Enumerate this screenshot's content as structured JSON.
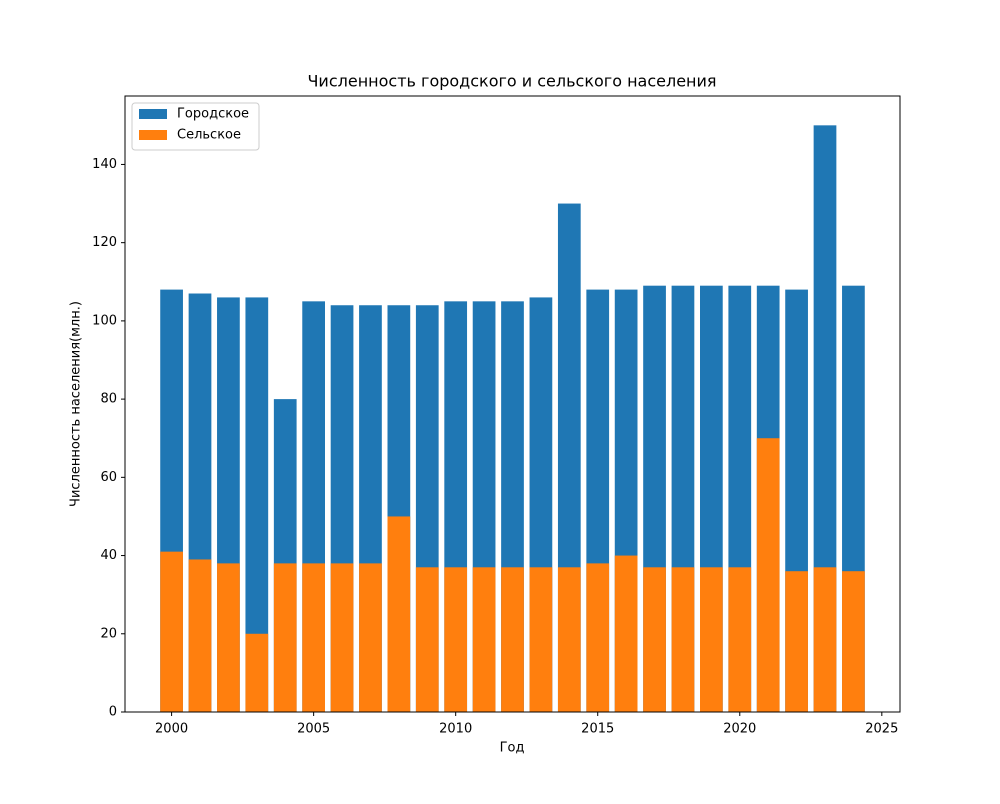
{
  "chart_data": {
    "type": "bar",
    "title": "Численность городского и сельского населения",
    "x_label": "Год",
    "y_label": "Численность населения(млн.)",
    "x": [
      2000,
      2001,
      2002,
      2003,
      2004,
      2005,
      2006,
      2007,
      2008,
      2009,
      2010,
      2011,
      2012,
      2013,
      2014,
      2015,
      2016,
      2017,
      2018,
      2019,
      2020,
      2021,
      2022,
      2023,
      2024
    ],
    "series": [
      {
        "name": "Городское",
        "color": "#1f77b4",
        "values": [
          108,
          107,
          106,
          106,
          80,
          105,
          104,
          104,
          104,
          104,
          105,
          105,
          105,
          106,
          130,
          108,
          108,
          109,
          109,
          109,
          109,
          109,
          108,
          150,
          109
        ]
      },
      {
        "name": "Сельское",
        "color": "#ff7f0e",
        "values": [
          41,
          39,
          38,
          20,
          38,
          38,
          38,
          38,
          50,
          37,
          37,
          37,
          37,
          37,
          37,
          38,
          40,
          37,
          37,
          37,
          37,
          70,
          36,
          37,
          36
        ]
      }
    ],
    "xlim": [
      1998.36,
      2025.64
    ],
    "xticks": [
      2000,
      2005,
      2010,
      2015,
      2020,
      2025
    ],
    "ylim": [
      0,
      157.5
    ],
    "yticks": [
      0,
      20,
      40,
      60,
      80,
      100,
      120,
      140
    ],
    "grid": false,
    "legend": "upper left"
  }
}
